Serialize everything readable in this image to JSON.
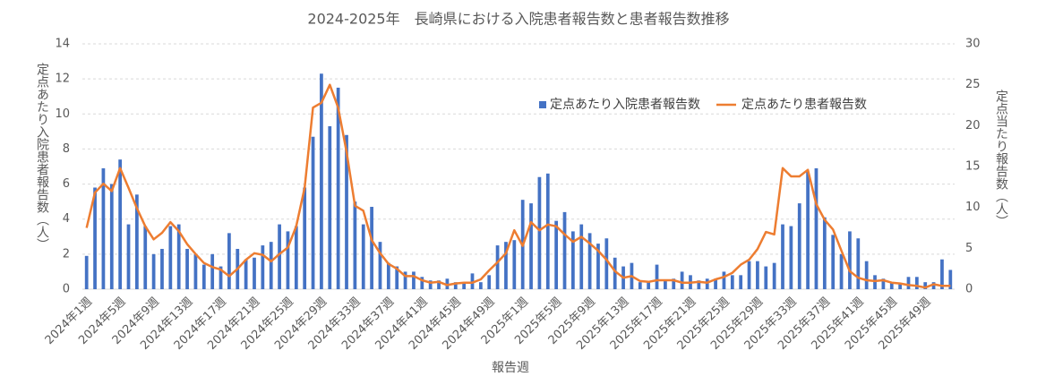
{
  "chart_data": {
    "type": "combo",
    "title": "2024-2025年　長崎県における入院患者報告数と患者報告数推移",
    "x_label": "報告週",
    "y_label": "定点あたり入院患者報告数（人）",
    "y2_label": "定点当たり報告数（人）",
    "categories": [
      "2024年1週",
      null,
      null,
      null,
      "2024年5週",
      null,
      null,
      null,
      "2024年9週",
      null,
      null,
      null,
      "2024年13週",
      null,
      null,
      null,
      "2024年17週",
      null,
      null,
      null,
      "2024年21週",
      null,
      null,
      null,
      "2024年25週",
      null,
      null,
      null,
      "2024年29週",
      null,
      null,
      null,
      "2024年33週",
      null,
      null,
      null,
      "2024年37週",
      null,
      null,
      null,
      "2024年41週",
      null,
      null,
      null,
      "2024年45週",
      null,
      null,
      null,
      "2024年49週",
      null,
      null,
      null,
      "2025年1週",
      null,
      null,
      null,
      "2025年5週",
      null,
      null,
      null,
      "2025年9週",
      null,
      null,
      null,
      "2025年13週",
      null,
      null,
      null,
      "2025年17週",
      null,
      null,
      null,
      "2025年21週",
      null,
      null,
      null,
      "2025年25週",
      null,
      null,
      null,
      "2025年29週",
      null,
      null,
      null,
      "2025年33週",
      null,
      null,
      null,
      "2025年37週",
      null,
      null,
      null,
      "2025年41週",
      null,
      null,
      null,
      "2025年45週",
      null,
      null,
      null,
      "2025年49週",
      null,
      null,
      null
    ],
    "series": [
      {
        "name": "定点あたり入院患者報告数",
        "type": "bar",
        "axis": "y",
        "color": "#4472c4",
        "values": [
          1.9,
          5.8,
          6.9,
          6.0,
          7.4,
          3.7,
          5.4,
          3.6,
          2.0,
          2.3,
          3.6,
          3.7,
          2.3,
          2.0,
          1.4,
          2.0,
          1.3,
          3.2,
          2.3,
          1.7,
          1.8,
          2.5,
          2.7,
          3.7,
          3.3,
          3.6,
          5.8,
          8.7,
          12.3,
          9.3,
          11.5,
          8.8,
          5.0,
          3.7,
          4.7,
          2.7,
          1.5,
          1.3,
          1.0,
          1.0,
          0.7,
          0.5,
          0.5,
          0.6,
          0.4,
          0.4,
          0.9,
          0.4,
          0.8,
          2.5,
          2.7,
          2.8,
          5.1,
          4.9,
          6.4,
          6.6,
          3.9,
          4.4,
          3.3,
          3.7,
          3.2,
          2.6,
          2.9,
          1.8,
          1.3,
          1.5,
          0.4,
          0.4,
          1.4,
          0.5,
          0.6,
          1.0,
          0.8,
          0.5,
          0.6,
          0.6,
          1.0,
          0.8,
          0.8,
          1.6,
          1.6,
          1.3,
          1.5,
          3.7,
          3.6,
          4.9,
          6.7,
          6.9,
          4.1,
          3.1,
          2.0,
          3.3,
          2.9,
          1.6,
          0.8,
          0.6,
          0.4,
          0.3,
          0.7,
          0.7,
          0.4,
          0.4,
          1.7,
          1.1
        ]
      },
      {
        "name": "定点あたり患者報告数",
        "type": "line",
        "axis": "y2",
        "color": "#ed7d31",
        "values": [
          7.5,
          11.8,
          12.9,
          12.0,
          14.8,
          12.4,
          9.9,
          7.7,
          6.1,
          6.9,
          8.2,
          7.1,
          5.5,
          4.3,
          3.2,
          2.7,
          2.4,
          1.6,
          2.5,
          3.6,
          4.4,
          4.2,
          3.4,
          4.3,
          5.1,
          7.7,
          12.4,
          22.2,
          22.8,
          25.0,
          22.2,
          16.8,
          10.2,
          9.6,
          6.0,
          4.4,
          3.1,
          2.5,
          1.6,
          1.6,
          1.1,
          0.8,
          0.9,
          0.5,
          0.7,
          0.8,
          0.8,
          1.2,
          2.3,
          3.3,
          4.4,
          7.2,
          5.3,
          8.2,
          7.2,
          7.9,
          7.7,
          6.7,
          5.8,
          6.4,
          5.6,
          4.7,
          3.6,
          2.2,
          1.4,
          1.6,
          1.0,
          0.9,
          1.1,
          1.1,
          1.1,
          0.8,
          0.8,
          0.9,
          0.8,
          1.2,
          1.5,
          2.0,
          3.0,
          3.6,
          4.9,
          7.0,
          6.7,
          14.8,
          13.8,
          13.8,
          14.6,
          10.4,
          8.5,
          7.3,
          4.7,
          2.2,
          1.4,
          1.1,
          1.0,
          1.1,
          0.8,
          0.7,
          0.5,
          0.4,
          0.2,
          0.6,
          0.4,
          0.4
        ]
      }
    ],
    "ylim": [
      0,
      14
    ],
    "yticks": [
      0,
      2,
      4,
      6,
      8,
      10,
      12,
      14
    ],
    "y2lim": [
      0,
      30
    ],
    "y2ticks": [
      0,
      5,
      10,
      15,
      20,
      25,
      30
    ],
    "grid": true,
    "legend": "top-right"
  }
}
